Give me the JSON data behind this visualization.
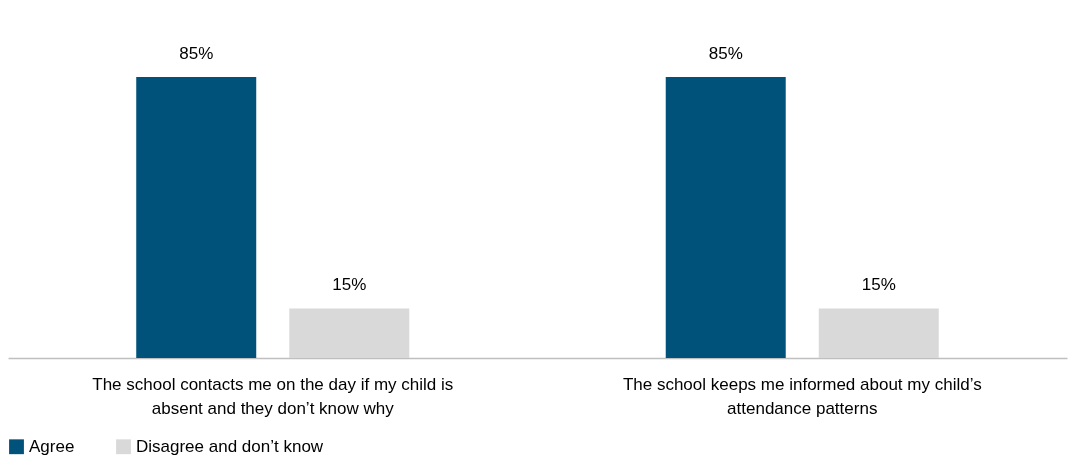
{
  "chart_data": {
    "type": "bar",
    "categories": [
      "The school contacts me on the day if my child is absent and they don’t know why",
      "The school keeps me informed about my child’s attendance patterns"
    ],
    "series": [
      {
        "name": "Agree",
        "color": "#00527a",
        "values": [
          85,
          85
        ],
        "value_labels": [
          "85%",
          "85%"
        ]
      },
      {
        "name": "Disagree and don’t know",
        "color": "#d9d9d9",
        "values": [
          15,
          15
        ],
        "value_labels": [
          "15%",
          "15%"
        ]
      }
    ],
    "legend": "bottom"
  }
}
